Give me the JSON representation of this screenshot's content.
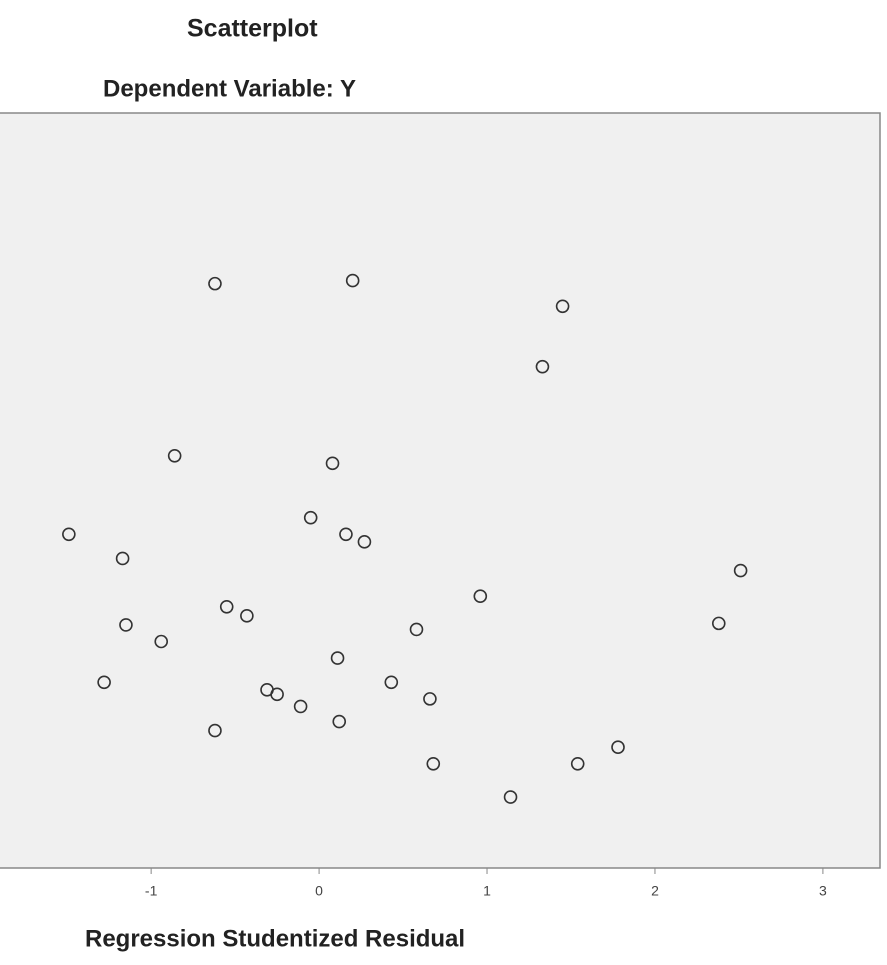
{
  "chart_data": {
    "type": "scatter",
    "title": "Scatterplot",
    "subtitle": "Dependent Variable: Y",
    "x_label": "Regression Studentized Residual",
    "xlim": [
      -1.9,
      3.34
    ],
    "xticks": [
      -1,
      0,
      1,
      2,
      3
    ],
    "ylim": [
      -2.5,
      2.5
    ],
    "color": "#333333",
    "series": [
      {
        "name": "Y",
        "x": [
          -0.62,
          0.2,
          1.45,
          1.33,
          -0.86,
          0.08,
          -0.05,
          -1.49,
          0.16,
          0.27,
          -1.17,
          2.51,
          0.96,
          -0.55,
          -0.43,
          -1.15,
          0.58,
          2.38,
          -0.94,
          0.11,
          -1.28,
          0.43,
          -0.31,
          -0.25,
          0.66,
          -0.11,
          0.12,
          -0.62,
          1.78,
          0.68,
          1.54,
          1.14
        ],
        "values": [
          1.37,
          1.39,
          1.22,
          0.82,
          0.23,
          0.18,
          -0.18,
          -0.29,
          -0.29,
          -0.34,
          -0.45,
          -0.53,
          -0.7,
          -0.77,
          -0.83,
          -0.89,
          -0.92,
          -0.88,
          -1.0,
          -1.11,
          -1.27,
          -1.27,
          -1.32,
          -1.35,
          -1.38,
          -1.43,
          -1.53,
          -1.59,
          -1.7,
          -1.81,
          -1.81,
          -2.03
        ]
      }
    ]
  }
}
